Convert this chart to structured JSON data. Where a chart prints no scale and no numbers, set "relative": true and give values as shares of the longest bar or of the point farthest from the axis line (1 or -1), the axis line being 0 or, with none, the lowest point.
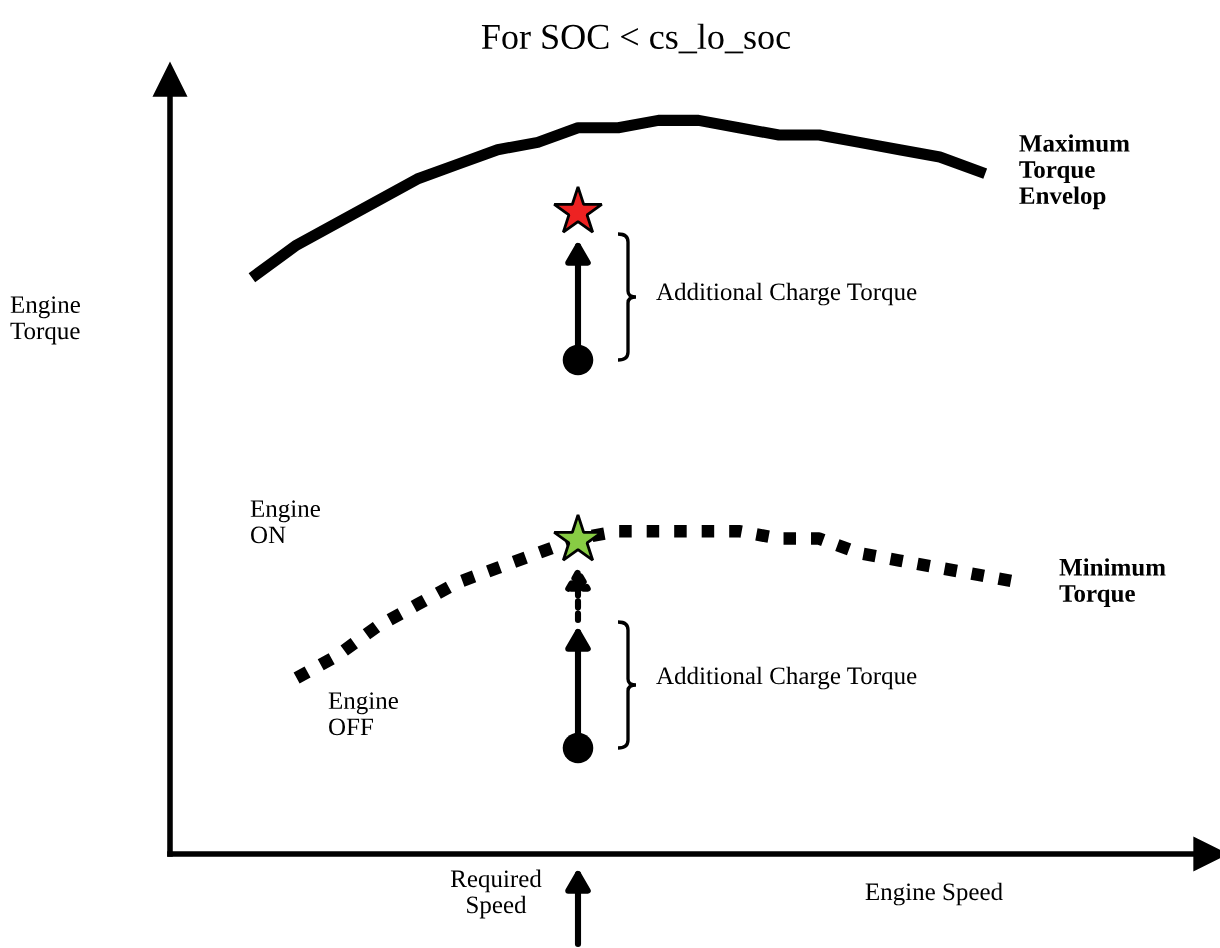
{
  "chart_data": {
    "type": "line",
    "relative": true,
    "title": "For SOC < cs_lo_soc",
    "xlabel": "Engine Speed",
    "categories": [
      null,
      null,
      null,
      null,
      null,
      null,
      null,
      null,
      null,
      null,
      null,
      null,
      null,
      null,
      null,
      null,
      null,
      null,
      null,
      null
    ],
    "series": [
      {
        "name": "Maximum Torque Envelop",
        "color": "#000000",
        "line_style": "solid",
        "marker": "none",
        "values": [
          0.79,
          0.83,
          0.86,
          0.89,
          0.92,
          0.94,
          0.96,
          0.97,
          0.99,
          0.99,
          1,
          1,
          0.99,
          0.98,
          0.98,
          0.97,
          0.96,
          0.95,
          0.93,
          null
        ]
      },
      {
        "name": "Minimum Torque",
        "color": "#000000",
        "line_style": "dotted",
        "marker": "none",
        "values": [
          null,
          0.24,
          0.27,
          0.31,
          0.34,
          0.37,
          0.39,
          0.41,
          0.43,
          0.44,
          0.44,
          0.44,
          0.44,
          0.43,
          0.43,
          0.41,
          0.4,
          0.39,
          0.38,
          0.37
        ]
      }
    ],
    "annotations": [
      "Additional Charge Torque",
      "Additional Charge Torque",
      "Engine ON",
      "Engine OFF",
      "Required Speed",
      "Engine Torque"
    ],
    "legend": false,
    "grid": false
  }
}
